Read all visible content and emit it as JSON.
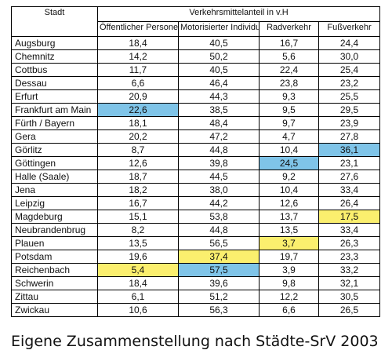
{
  "header": {
    "stadt": "Stadt",
    "group": "Verkehrsmittelanteil in v.H",
    "cols": [
      "Öffentlicher Personenverkehr",
      "Motorisierter Individualverkehr",
      "Radverkehr",
      "Fußverkehr"
    ]
  },
  "highlight_colors": {
    "blue": "#7fc4e8",
    "yellow": "#fbef6e"
  },
  "rows": [
    {
      "city": "Augsburg",
      "values": [
        "18,4",
        "40,5",
        "16,7",
        "24,4"
      ],
      "hl": [
        "",
        "",
        "",
        ""
      ]
    },
    {
      "city": "Chemnitz",
      "values": [
        "14,2",
        "50,2",
        "5,6",
        "30,0"
      ],
      "hl": [
        "",
        "",
        "",
        ""
      ]
    },
    {
      "city": "Cottbus",
      "values": [
        "11,7",
        "40,5",
        "22,4",
        "25,4"
      ],
      "hl": [
        "",
        "",
        "",
        ""
      ]
    },
    {
      "city": "Dessau",
      "values": [
        "6,6",
        "46,4",
        "23,8",
        "23,2"
      ],
      "hl": [
        "",
        "",
        "",
        ""
      ]
    },
    {
      "city": "Erfurt",
      "values": [
        "20,9",
        "44,3",
        "9,3",
        "25,5"
      ],
      "hl": [
        "",
        "",
        "",
        ""
      ]
    },
    {
      "city": "Frankfurt am Main",
      "values": [
        "22,6",
        "38,5",
        "9,5",
        "29,5"
      ],
      "hl": [
        "blue",
        "",
        "",
        ""
      ]
    },
    {
      "city": "Fürth / Bayern",
      "values": [
        "18,1",
        "48,4",
        "9,7",
        "23,9"
      ],
      "hl": [
        "",
        "",
        "",
        ""
      ]
    },
    {
      "city": "Gera",
      "values": [
        "20,2",
        "47,2",
        "4,7",
        "27,8"
      ],
      "hl": [
        "",
        "",
        "",
        ""
      ]
    },
    {
      "city": "Görlitz",
      "values": [
        "8,7",
        "44,8",
        "10,4",
        "36,1"
      ],
      "hl": [
        "",
        "",
        "",
        "blue"
      ]
    },
    {
      "city": "Göttingen",
      "values": [
        "12,6",
        "39,8",
        "24,5",
        "23,1"
      ],
      "hl": [
        "",
        "",
        "blue",
        ""
      ]
    },
    {
      "city": "Halle (Saale)",
      "values": [
        "18,7",
        "44,5",
        "9,2",
        "27,6"
      ],
      "hl": [
        "",
        "",
        "",
        ""
      ]
    },
    {
      "city": "Jena",
      "values": [
        "18,2",
        "38,0",
        "10,4",
        "33,4"
      ],
      "hl": [
        "",
        "",
        "",
        ""
      ]
    },
    {
      "city": "Leipzig",
      "values": [
        "16,7",
        "44,2",
        "12,6",
        "26,4"
      ],
      "hl": [
        "",
        "",
        "",
        ""
      ]
    },
    {
      "city": "Magdeburg",
      "values": [
        "15,1",
        "53,8",
        "13,7",
        "17,5"
      ],
      "hl": [
        "",
        "",
        "",
        "yellow"
      ]
    },
    {
      "city": "Neubrandenbrug",
      "values": [
        "8,2",
        "44,8",
        "13,5",
        "33,4"
      ],
      "hl": [
        "",
        "",
        "",
        ""
      ]
    },
    {
      "city": "Plauen",
      "values": [
        "13,5",
        "56,5",
        "3,7",
        "26,3"
      ],
      "hl": [
        "",
        "",
        "yellow",
        ""
      ]
    },
    {
      "city": "Potsdam",
      "values": [
        "19,6",
        "37,4",
        "19,7",
        "23,3"
      ],
      "hl": [
        "",
        "yellow",
        "",
        ""
      ]
    },
    {
      "city": "Reichenbach",
      "values": [
        "5,4",
        "57,5",
        "3,9",
        "33,2"
      ],
      "hl": [
        "yellow",
        "blue",
        "",
        ""
      ]
    },
    {
      "city": "Schwerin",
      "values": [
        "18,4",
        "39,6",
        "9,8",
        "32,1"
      ],
      "hl": [
        "",
        "",
        "",
        ""
      ]
    },
    {
      "city": "Zittau",
      "values": [
        "6,1",
        "51,2",
        "12,2",
        "30,5"
      ],
      "hl": [
        "",
        "",
        "",
        ""
      ]
    },
    {
      "city": "Zwickau",
      "values": [
        "10,6",
        "56,3",
        "6,6",
        "26,5"
      ],
      "hl": [
        "",
        "",
        "",
        ""
      ]
    }
  ],
  "caption": "Eigene Zusammenstellung nach Städte-SrV 2003"
}
